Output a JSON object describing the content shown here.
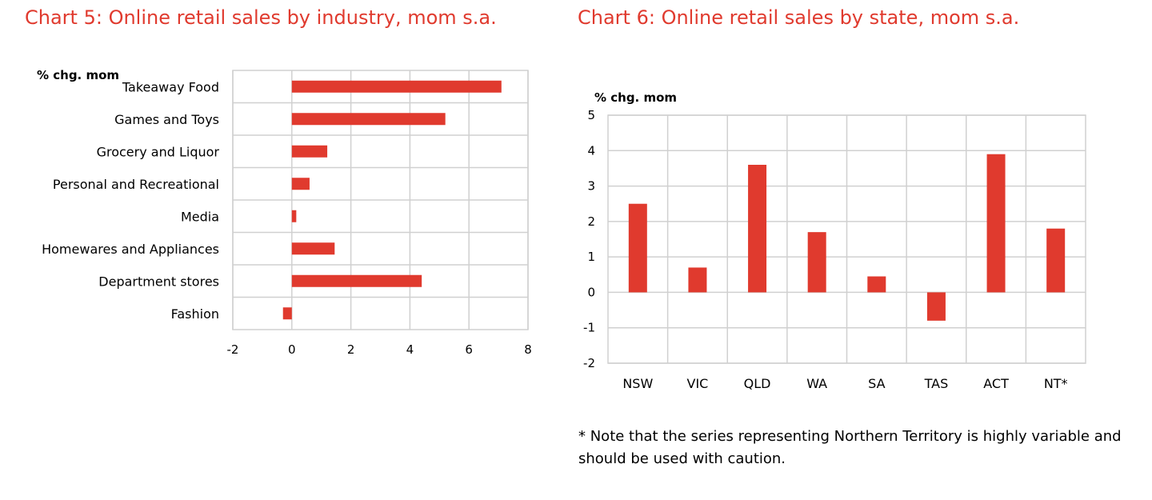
{
  "chart_data": [
    {
      "type": "bar",
      "orientation": "horizontal",
      "title": "Chart 5: Online retail sales by industry, mom s.a.",
      "ylabel": "% chg. mom",
      "categories": [
        "Takeaway Food",
        "Games and Toys",
        "Grocery and Liquor",
        "Personal and Recreational",
        "Media",
        "Homewares and Appliances",
        "Department stores",
        "Fashion"
      ],
      "values": [
        7.1,
        5.2,
        1.2,
        0.6,
        0.15,
        1.45,
        4.4,
        -0.3
      ],
      "xlim": [
        -2,
        8
      ],
      "xticks": [
        "-2",
        "0",
        "2",
        "4",
        "6",
        "8"
      ],
      "grid": true,
      "bar_color": "#e03a2e"
    },
    {
      "type": "bar",
      "orientation": "vertical",
      "title": "Chart 6: Online retail sales by state, mom s.a.",
      "ylabel": "% chg. mom",
      "categories": [
        "NSW",
        "VIC",
        "QLD",
        "WA",
        "SA",
        "TAS",
        "ACT",
        "NT*"
      ],
      "values": [
        2.5,
        0.7,
        3.6,
        1.7,
        0.45,
        -0.8,
        3.9,
        1.8
      ],
      "ylim": [
        -2,
        5
      ],
      "yticks": [
        "5",
        "4",
        "3",
        "2",
        "1",
        "0",
        "-1",
        "-2"
      ],
      "grid": true,
      "bar_color": "#e03a2e"
    }
  ],
  "note": "* Note that the series representing Northern Territory is highly variable and should be used with caution."
}
